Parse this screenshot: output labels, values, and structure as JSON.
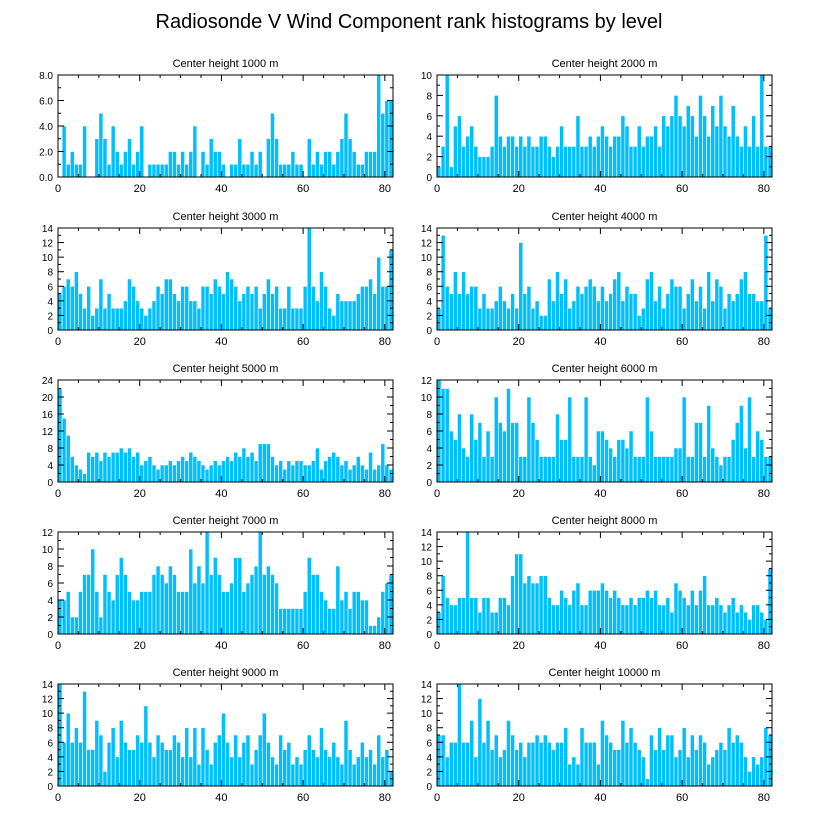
{
  "figure_title": "Radiosonde V Wind Component rank histograms by level",
  "colors": {
    "bar": "#00bfff",
    "bar_edge": "#ffffff",
    "axis": "#000000",
    "background": "#ffffff"
  },
  "chart_data": [
    {
      "type": "bar",
      "title": "Center height 1000 m",
      "xlabel": "",
      "ylabel": "",
      "xlim": [
        0,
        82
      ],
      "ylim": [
        0,
        8
      ],
      "xticks": [
        0,
        20,
        40,
        60,
        80
      ],
      "xtick_labels": [
        "0",
        "20",
        "40",
        "60",
        "80"
      ],
      "yticks": [
        0,
        2,
        4,
        6,
        8
      ],
      "ytick_labels": [
        "0.0",
        "2.0",
        "4.0",
        "6.0",
        "8.0"
      ],
      "categories_start": 0,
      "values": [
        0,
        4,
        1,
        2,
        1,
        1,
        4,
        0,
        0,
        3,
        5,
        3,
        1,
        4,
        2,
        1,
        2,
        3,
        1,
        2,
        4,
        0,
        1,
        1,
        1,
        1,
        1,
        2,
        2,
        1,
        2,
        1,
        2,
        4,
        0,
        2,
        1,
        3,
        2,
        2,
        1,
        0,
        1,
        1,
        3,
        1,
        1,
        2,
        1,
        2,
        0,
        3,
        5,
        3,
        1,
        1,
        1,
        2,
        1,
        1,
        0,
        3,
        1,
        2,
        1,
        2,
        2,
        1,
        2,
        3,
        5,
        3,
        2,
        1,
        1,
        2,
        2,
        2,
        8,
        5,
        6,
        6
      ]
    },
    {
      "type": "bar",
      "title": "Center height 2000 m",
      "xlabel": "",
      "ylabel": "",
      "xlim": [
        0,
        82
      ],
      "ylim": [
        0,
        10
      ],
      "xticks": [
        0,
        20,
        40,
        60,
        80
      ],
      "xtick_labels": [
        "0",
        "20",
        "40",
        "60",
        "80"
      ],
      "yticks": [
        0,
        2,
        4,
        6,
        8,
        10
      ],
      "ytick_labels": [
        "0",
        "2",
        "4",
        "6",
        "8",
        "10"
      ],
      "categories_start": 0,
      "values": [
        1,
        3,
        10,
        1,
        5,
        6,
        3,
        4,
        5,
        3,
        2,
        2,
        2,
        3,
        8,
        4,
        3,
        4,
        4,
        3,
        4,
        3,
        4,
        3,
        3,
        4,
        4,
        3,
        2,
        3,
        5,
        3,
        3,
        3,
        6,
        3,
        3,
        4,
        3,
        4,
        5,
        4,
        3,
        4,
        4,
        6,
        5,
        3,
        3,
        5,
        3,
        4,
        4,
        5,
        3,
        6,
        5,
        6,
        8,
        6,
        5,
        7,
        6,
        4,
        8,
        6,
        4,
        7,
        5,
        8,
        5,
        4,
        7,
        4,
        3,
        5,
        3,
        6,
        3,
        10,
        3,
        3
      ]
    },
    {
      "type": "bar",
      "title": "Center height 3000 m",
      "xlabel": "",
      "ylabel": "",
      "xlim": [
        0,
        82
      ],
      "ylim": [
        0,
        14
      ],
      "xticks": [
        0,
        20,
        40,
        60,
        80
      ],
      "xtick_labels": [
        "0",
        "20",
        "40",
        "60",
        "80"
      ],
      "yticks": [
        0,
        2,
        4,
        6,
        8,
        10,
        12,
        14
      ],
      "ytick_labels": [
        "0",
        "2",
        "4",
        "6",
        "8",
        "10",
        "12",
        "14"
      ],
      "categories_start": 0,
      "values": [
        5,
        6,
        7,
        6,
        8,
        5,
        3,
        6,
        2,
        3,
        7,
        3,
        5,
        3,
        3,
        3,
        4,
        7,
        6,
        4,
        3,
        2,
        3,
        4,
        6,
        5,
        7,
        7,
        5,
        4,
        6,
        6,
        4,
        4,
        3,
        6,
        6,
        5,
        7,
        6,
        5,
        8,
        7,
        6,
        4,
        5,
        6,
        5,
        6,
        3,
        5,
        7,
        5,
        6,
        3,
        3,
        6,
        3,
        3,
        3,
        6,
        14,
        6,
        4,
        8,
        6,
        3,
        2,
        5,
        4,
        4,
        4,
        4,
        5,
        6,
        6,
        7,
        5,
        10,
        6,
        6,
        11
      ]
    },
    {
      "type": "bar",
      "title": "Center height 4000 m",
      "xlabel": "",
      "ylabel": "",
      "xlim": [
        0,
        82
      ],
      "ylim": [
        0,
        14
      ],
      "xticks": [
        0,
        20,
        40,
        60,
        80
      ],
      "xtick_labels": [
        "0",
        "20",
        "40",
        "60",
        "80"
      ],
      "yticks": [
        0,
        2,
        4,
        6,
        8,
        10,
        12,
        14
      ],
      "ytick_labels": [
        "0",
        "2",
        "4",
        "6",
        "8",
        "10",
        "12",
        "14"
      ],
      "categories_start": 0,
      "values": [
        3,
        13,
        6,
        5,
        8,
        5,
        8,
        5,
        6,
        6,
        3,
        5,
        3,
        3,
        4,
        6,
        4,
        3,
        5,
        3,
        12,
        5,
        6,
        3,
        4,
        2,
        2,
        7,
        4,
        8,
        5,
        7,
        3,
        4,
        6,
        5,
        6,
        7,
        6,
        4,
        6,
        4,
        5,
        7,
        8,
        4,
        6,
        5,
        5,
        2,
        3,
        7,
        8,
        4,
        6,
        3,
        5,
        7,
        6,
        6,
        3,
        5,
        7,
        4,
        6,
        3,
        8,
        4,
        7,
        6,
        3,
        5,
        4,
        5,
        7,
        8,
        5,
        5,
        4,
        4,
        13,
        3
      ]
    },
    {
      "type": "bar",
      "title": "Center height 5000 m",
      "xlabel": "",
      "ylabel": "",
      "xlim": [
        0,
        82
      ],
      "ylim": [
        0,
        24
      ],
      "xticks": [
        0,
        20,
        40,
        60,
        80
      ],
      "xtick_labels": [
        "0",
        "20",
        "40",
        "60",
        "80"
      ],
      "yticks": [
        0,
        4,
        8,
        12,
        16,
        20,
        24
      ],
      "ytick_labels": [
        "0",
        "4",
        "8",
        "12",
        "16",
        "20",
        "24"
      ],
      "categories_start": 0,
      "values": [
        22,
        15,
        11,
        6,
        4,
        3,
        2,
        7,
        6,
        7,
        5,
        7,
        6,
        7,
        7,
        8,
        7,
        8,
        6,
        7,
        4,
        5,
        6,
        4,
        3,
        4,
        4,
        5,
        4,
        5,
        6,
        5,
        7,
        6,
        5,
        4,
        3,
        4,
        5,
        4,
        5,
        6,
        5,
        7,
        6,
        8,
        6,
        7,
        5,
        9,
        9,
        9,
        6,
        4,
        5,
        3,
        5,
        4,
        5,
        5,
        4,
        4,
        5,
        8,
        3,
        5,
        6,
        7,
        6,
        4,
        5,
        3,
        4,
        6,
        4,
        3,
        7,
        3,
        4,
        9,
        4,
        3
      ]
    },
    {
      "type": "bar",
      "title": "Center height 6000 m",
      "xlabel": "",
      "ylabel": "",
      "xlim": [
        0,
        82
      ],
      "ylim": [
        0,
        12
      ],
      "xticks": [
        0,
        20,
        40,
        60,
        80
      ],
      "xtick_labels": [
        "0",
        "20",
        "40",
        "60",
        "80"
      ],
      "yticks": [
        0,
        2,
        4,
        6,
        8,
        10,
        12
      ],
      "ytick_labels": [
        "0",
        "2",
        "4",
        "6",
        "8",
        "10",
        "12"
      ],
      "categories_start": 0,
      "values": [
        12,
        11,
        11,
        6,
        5,
        8,
        4,
        3,
        8,
        5,
        7,
        3,
        6,
        3,
        10,
        7,
        6,
        11,
        7,
        7,
        3,
        3,
        10,
        7,
        5,
        3,
        3,
        3,
        3,
        8,
        5,
        5,
        10,
        3,
        3,
        3,
        10,
        3,
        2,
        6,
        6,
        5,
        4,
        3,
        5,
        5,
        4,
        6,
        3,
        3,
        3,
        10,
        6,
        3,
        3,
        3,
        3,
        3,
        4,
        4,
        10,
        3,
        3,
        7,
        7,
        3,
        9,
        4,
        3,
        2,
        3,
        3,
        5,
        7,
        9,
        4,
        10,
        3,
        6,
        5,
        3,
        3
      ]
    },
    {
      "type": "bar",
      "title": "Center height 7000 m",
      "xlabel": "",
      "ylabel": "",
      "xlim": [
        0,
        82
      ],
      "ylim": [
        0,
        12
      ],
      "xticks": [
        0,
        20,
        40,
        60,
        80
      ],
      "xtick_labels": [
        "0",
        "20",
        "40",
        "60",
        "80"
      ],
      "yticks": [
        0,
        2,
        4,
        6,
        8,
        10,
        12
      ],
      "ytick_labels": [
        "0",
        "2",
        "4",
        "6",
        "8",
        "10",
        "12"
      ],
      "categories_start": 0,
      "values": [
        4,
        4,
        5,
        2,
        2,
        5,
        7,
        7,
        10,
        5,
        2,
        7,
        5,
        4,
        7,
        9,
        7,
        5,
        4,
        4,
        5,
        5,
        5,
        7,
        8,
        7,
        6,
        8,
        7,
        5,
        5,
        5,
        10,
        6,
        8,
        6,
        12,
        7,
        9,
        7,
        5,
        5,
        6,
        9,
        9,
        5,
        6,
        7,
        8,
        12,
        7,
        8,
        7,
        6,
        3,
        3,
        3,
        3,
        3,
        3,
        5,
        9,
        7,
        7,
        5,
        4,
        3,
        3,
        8,
        4,
        5,
        3,
        5,
        5,
        4,
        4,
        1,
        1,
        2,
        5,
        6,
        7
      ]
    },
    {
      "type": "bar",
      "title": "Center height 8000 m",
      "xlabel": "",
      "ylabel": "",
      "xlim": [
        0,
        82
      ],
      "ylim": [
        0,
        14
      ],
      "xticks": [
        0,
        20,
        40,
        60,
        80
      ],
      "xtick_labels": [
        "0",
        "20",
        "40",
        "60",
        "80"
      ],
      "yticks": [
        0,
        2,
        4,
        6,
        8,
        10,
        12,
        14
      ],
      "ytick_labels": [
        "0",
        "2",
        "4",
        "6",
        "8",
        "10",
        "12",
        "14"
      ],
      "categories_start": 0,
      "values": [
        3,
        8,
        5,
        4,
        4,
        5,
        5,
        14,
        5,
        5,
        3,
        5,
        5,
        3,
        3,
        5,
        5,
        4,
        8,
        11,
        11,
        7,
        8,
        7,
        7,
        8,
        8,
        5,
        4,
        4,
        6,
        5,
        4,
        6,
        7,
        4,
        4,
        6,
        6,
        6,
        7,
        6,
        5,
        6,
        5,
        4,
        4,
        5,
        4,
        5,
        5,
        6,
        5,
        6,
        4,
        4,
        5,
        3,
        7,
        6,
        5,
        4,
        6,
        4,
        6,
        8,
        4,
        4,
        5,
        4,
        3,
        4,
        5,
        3,
        4,
        3,
        2,
        4,
        4,
        3,
        2,
        9
      ]
    },
    {
      "type": "bar",
      "title": "Center height 9000 m",
      "xlabel": "",
      "ylabel": "",
      "xlim": [
        0,
        82
      ],
      "ylim": [
        0,
        14
      ],
      "xticks": [
        0,
        20,
        40,
        60,
        80
      ],
      "xtick_labels": [
        "0",
        "20",
        "40",
        "60",
        "80"
      ],
      "yticks": [
        0,
        2,
        4,
        6,
        8,
        10,
        12,
        14
      ],
      "ytick_labels": [
        "0",
        "2",
        "4",
        "6",
        "8",
        "10",
        "12",
        "14"
      ],
      "categories_start": 0,
      "values": [
        14,
        6,
        10,
        6,
        8,
        6,
        13,
        5,
        5,
        9,
        7,
        2,
        6,
        8,
        4,
        9,
        6,
        5,
        5,
        7,
        6,
        11,
        6,
        4,
        7,
        6,
        5,
        5,
        7,
        6,
        4,
        8,
        4,
        8,
        3,
        8,
        5,
        3,
        6,
        7,
        10,
        6,
        4,
        7,
        4,
        6,
        7,
        3,
        5,
        7,
        10,
        6,
        4,
        3,
        7,
        5,
        6,
        3,
        4,
        3,
        5,
        7,
        5,
        4,
        8,
        5,
        4,
        6,
        4,
        3,
        9,
        5,
        3,
        4,
        6,
        4,
        5,
        3,
        7,
        4,
        5,
        2
      ]
    },
    {
      "type": "bar",
      "title": "Center height 10000 m",
      "xlabel": "",
      "ylabel": "",
      "xlim": [
        0,
        82
      ],
      "ylim": [
        0,
        14
      ],
      "xticks": [
        0,
        20,
        40,
        60,
        80
      ],
      "xtick_labels": [
        "0",
        "20",
        "40",
        "60",
        "80"
      ],
      "yticks": [
        0,
        2,
        4,
        6,
        8,
        10,
        12,
        14
      ],
      "ytick_labels": [
        "0",
        "2",
        "4",
        "6",
        "8",
        "10",
        "12",
        "14"
      ],
      "categories_start": 0,
      "values": [
        7,
        7,
        4,
        6,
        6,
        14,
        6,
        6,
        9,
        4,
        12,
        6,
        9,
        5,
        7,
        4,
        5,
        9,
        7,
        5,
        6,
        4,
        6,
        6,
        7,
        6,
        7,
        6,
        5,
        6,
        6,
        8,
        3,
        4,
        3,
        8,
        6,
        6,
        6,
        3,
        9,
        7,
        6,
        5,
        5,
        9,
        6,
        8,
        6,
        5,
        4,
        1,
        7,
        5,
        8,
        5,
        7,
        7,
        4,
        5,
        8,
        4,
        7,
        5,
        7,
        6,
        3,
        4,
        5,
        6,
        5,
        8,
        6,
        7,
        6,
        4,
        2,
        4,
        3,
        4,
        8,
        7
      ]
    }
  ]
}
